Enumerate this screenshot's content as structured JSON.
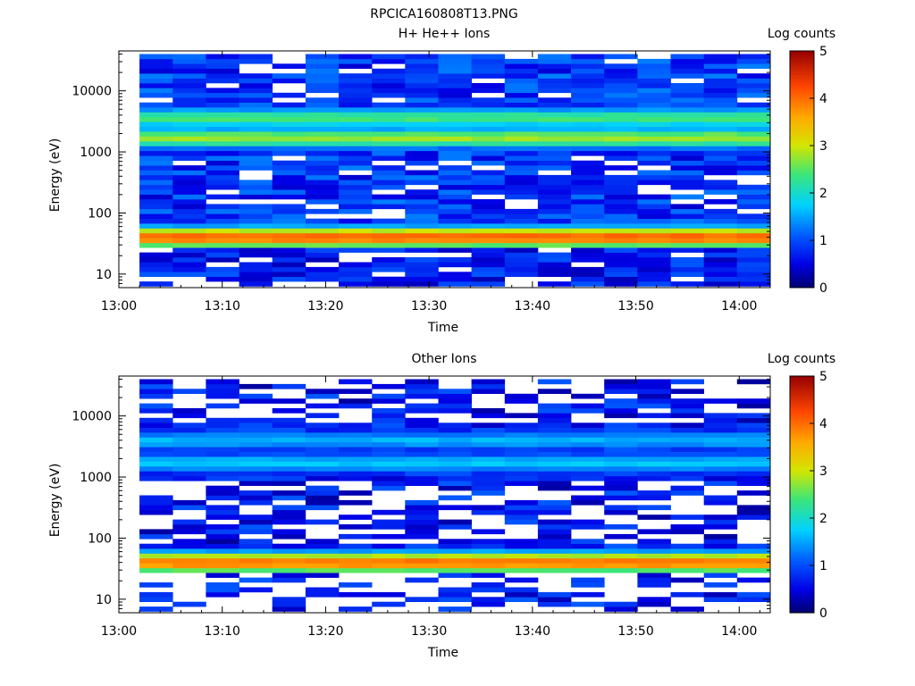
{
  "figure_title": "RPCICA160808T13.PNG",
  "chart_data": [
    {
      "type": "heatmap",
      "title": "H+ He++ Ions",
      "xlabel": "Time",
      "ylabel": "Energy (eV)",
      "x_ticks": [
        "13:00",
        "13:10",
        "13:20",
        "13:30",
        "13:40",
        "13:50",
        "14:00"
      ],
      "y_ticks": [
        "10",
        "100",
        "1000",
        "10000"
      ],
      "y_scale": "log",
      "xlim": [
        "13:00",
        "14:03"
      ],
      "ylim": [
        6,
        45000
      ],
      "x_start": "13:02",
      "x_end": "14:03",
      "time_bins": 19,
      "energy_bins": 48,
      "colorbar": {
        "label": "Log counts",
        "range": [
          0,
          5
        ],
        "ticks": [
          "0",
          "1",
          "2",
          "3",
          "4",
          "5"
        ],
        "colormap": "rainbow"
      },
      "bands": [
        {
          "energy_eV": 40,
          "log_counts": 4.0
        },
        {
          "energy_eV": 1700,
          "log_counts": 2.7
        },
        {
          "energy_eV": 3600,
          "log_counts": 2.3
        }
      ],
      "background_log_counts": 0.4,
      "empty_fraction": 0.12
    },
    {
      "type": "heatmap",
      "title": "Other Ions",
      "xlabel": "Time",
      "ylabel": "Energy (eV)",
      "x_ticks": [
        "13:00",
        "13:10",
        "13:20",
        "13:30",
        "13:40",
        "13:50",
        "14:00"
      ],
      "y_ticks": [
        "10",
        "100",
        "1000",
        "10000"
      ],
      "y_scale": "log",
      "xlim": [
        "13:00",
        "14:03"
      ],
      "ylim": [
        6,
        45000
      ],
      "x_start": "13:02",
      "x_end": "14:03",
      "time_bins": 19,
      "energy_bins": 48,
      "colorbar": {
        "label": "Log counts",
        "range": [
          0,
          5
        ],
        "ticks": [
          "0",
          "1",
          "2",
          "3",
          "4",
          "5"
        ],
        "colormap": "rainbow"
      },
      "bands": [
        {
          "energy_eV": 40,
          "log_counts": 3.9
        },
        {
          "energy_eV": 1700,
          "log_counts": 1.6
        },
        {
          "energy_eV": 4000,
          "log_counts": 1.5
        }
      ],
      "background_log_counts": 0.2,
      "empty_fraction": 0.45
    }
  ]
}
